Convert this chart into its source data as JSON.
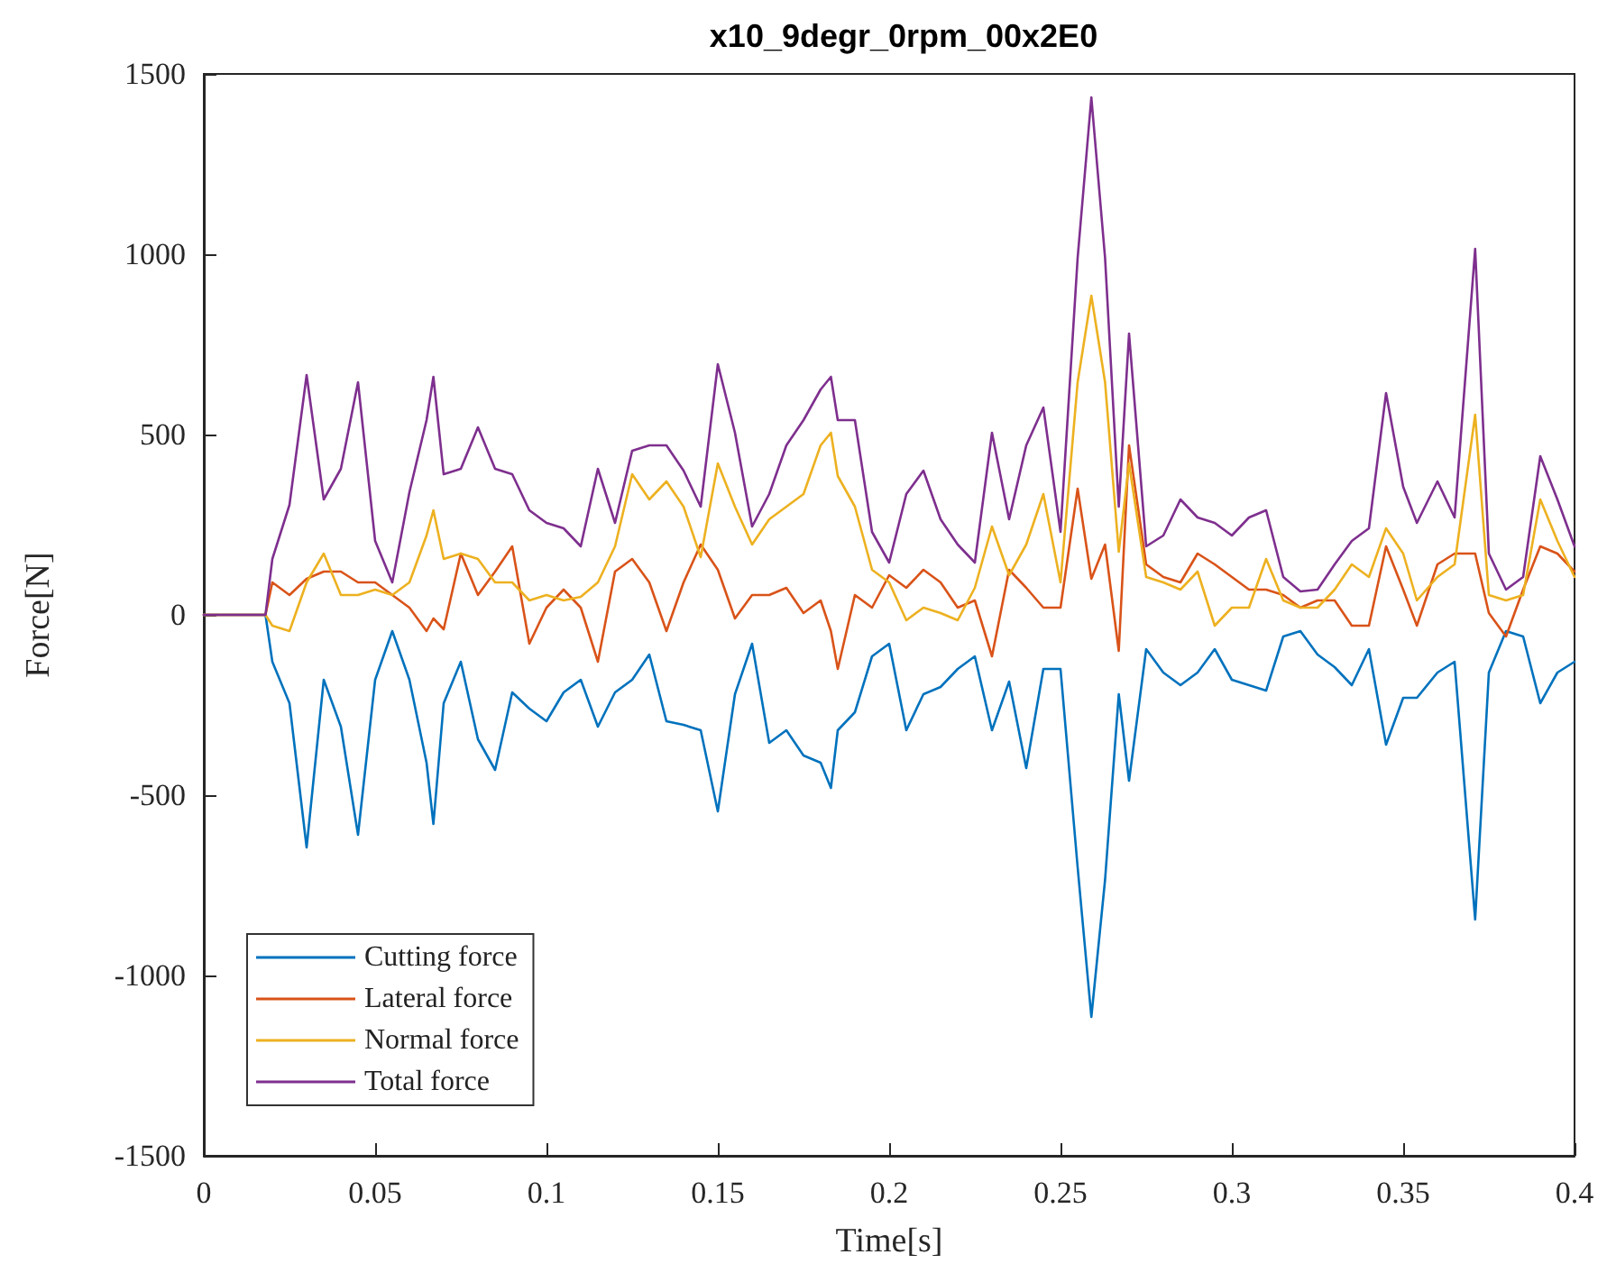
{
  "chart_data": {
    "type": "line",
    "title": "x10_9degr_0rpm_00x2E0",
    "xlabel": "Time[s]",
    "ylabel": "Force[N]",
    "x": [
      0,
      0.018,
      0.02,
      0.025,
      0.03,
      0.035,
      0.04,
      0.045,
      0.05,
      0.055,
      0.06,
      0.065,
      0.067,
      0.07,
      0.075,
      0.08,
      0.085,
      0.09,
      0.095,
      0.1,
      0.105,
      0.11,
      0.115,
      0.12,
      0.125,
      0.13,
      0.135,
      0.14,
      0.145,
      0.15,
      0.155,
      0.16,
      0.165,
      0.17,
      0.175,
      0.18,
      0.183,
      0.185,
      0.19,
      0.195,
      0.2,
      0.205,
      0.21,
      0.215,
      0.22,
      0.225,
      0.23,
      0.235,
      0.24,
      0.245,
      0.25,
      0.255,
      0.259,
      0.263,
      0.267,
      0.27,
      0.275,
      0.28,
      0.285,
      0.29,
      0.295,
      0.3,
      0.305,
      0.31,
      0.315,
      0.32,
      0.325,
      0.33,
      0.335,
      0.34,
      0.345,
      0.35,
      0.354,
      0.36,
      0.365,
      0.371,
      0.375,
      0.38,
      0.385,
      0.39,
      0.395,
      0.4
    ],
    "series": [
      {
        "name": "Cutting force",
        "color": "#0072bd",
        "values": [
          0,
          0,
          -130,
          -245,
          -645,
          -180,
          -310,
          -610,
          -180,
          -45,
          -180,
          -410,
          -580,
          -245,
          -130,
          -345,
          -430,
          -215,
          -260,
          -295,
          -215,
          -180,
          -310,
          -215,
          -180,
          -110,
          -295,
          -305,
          -320,
          -545,
          -220,
          -80,
          -355,
          -320,
          -390,
          -410,
          -480,
          -320,
          -270,
          -115,
          -80,
          -320,
          -220,
          -200,
          -150,
          -115,
          -320,
          -185,
          -425,
          -150,
          -150,
          -700,
          -1115,
          -735,
          -220,
          -460,
          -95,
          -160,
          -195,
          -160,
          -95,
          -180,
          -195,
          -210,
          -60,
          -45,
          -110,
          -145,
          -195,
          -95,
          -360,
          -230,
          -230,
          -160,
          -130,
          -845,
          -160,
          -45,
          -60,
          -245,
          -160,
          -130
        ]
      },
      {
        "name": "Lateral force",
        "color": "#d95319",
        "values": [
          0,
          0,
          90,
          55,
          100,
          120,
          120,
          90,
          90,
          55,
          20,
          -45,
          -10,
          -40,
          170,
          55,
          120,
          190,
          -80,
          20,
          70,
          20,
          -130,
          120,
          155,
          90,
          -45,
          90,
          195,
          125,
          -10,
          55,
          55,
          75,
          5,
          40,
          -45,
          -150,
          55,
          20,
          110,
          75,
          125,
          90,
          20,
          40,
          -115,
          125,
          75,
          20,
          20,
          350,
          100,
          195,
          -100,
          470,
          140,
          105,
          90,
          170,
          140,
          105,
          70,
          70,
          55,
          20,
          40,
          40,
          -30,
          -30,
          190,
          70,
          -30,
          140,
          170,
          170,
          5,
          -60,
          70,
          190,
          170,
          120
        ]
      },
      {
        "name": "Normal force",
        "color": "#edb120",
        "values": [
          0,
          0,
          -30,
          -45,
          90,
          170,
          55,
          55,
          70,
          55,
          90,
          220,
          290,
          155,
          170,
          155,
          90,
          90,
          40,
          55,
          40,
          50,
          90,
          190,
          390,
          320,
          370,
          300,
          160,
          420,
          300,
          195,
          265,
          300,
          335,
          470,
          505,
          385,
          300,
          125,
          90,
          -15,
          20,
          5,
          -15,
          75,
          245,
          110,
          195,
          335,
          90,
          645,
          885,
          645,
          175,
          420,
          105,
          90,
          70,
          120,
          -30,
          20,
          20,
          155,
          40,
          20,
          20,
          70,
          140,
          105,
          240,
          170,
          40,
          105,
          140,
          555,
          55,
          40,
          55,
          320,
          205,
          105
        ]
      },
      {
        "name": "Total force",
        "color": "#7e2f8e",
        "values": [
          0,
          0,
          155,
          305,
          665,
          320,
          405,
          645,
          205,
          90,
          340,
          540,
          660,
          390,
          405,
          520,
          405,
          390,
          290,
          255,
          240,
          190,
          405,
          255,
          455,
          470,
          470,
          400,
          300,
          695,
          505,
          245,
          335,
          470,
          540,
          625,
          660,
          540,
          540,
          230,
          145,
          335,
          400,
          265,
          195,
          145,
          505,
          265,
          470,
          575,
          230,
          990,
          1435,
          990,
          300,
          780,
          190,
          220,
          320,
          270,
          255,
          220,
          270,
          290,
          105,
          65,
          70,
          140,
          205,
          240,
          615,
          355,
          255,
          370,
          270,
          1015,
          170,
          70,
          105,
          440,
          320,
          190
        ]
      }
    ],
    "xlim": [
      0,
      0.4
    ],
    "xticks": [
      0,
      0.05,
      0.1,
      0.15,
      0.2,
      0.25,
      0.3,
      0.35,
      0.4
    ],
    "ylim": [
      -1500,
      1500
    ],
    "yticks": [
      -1500,
      -1000,
      -500,
      0,
      500,
      1000,
      1500
    ],
    "grid": false,
    "legend": "bottom left",
    "line_style": "solid"
  }
}
